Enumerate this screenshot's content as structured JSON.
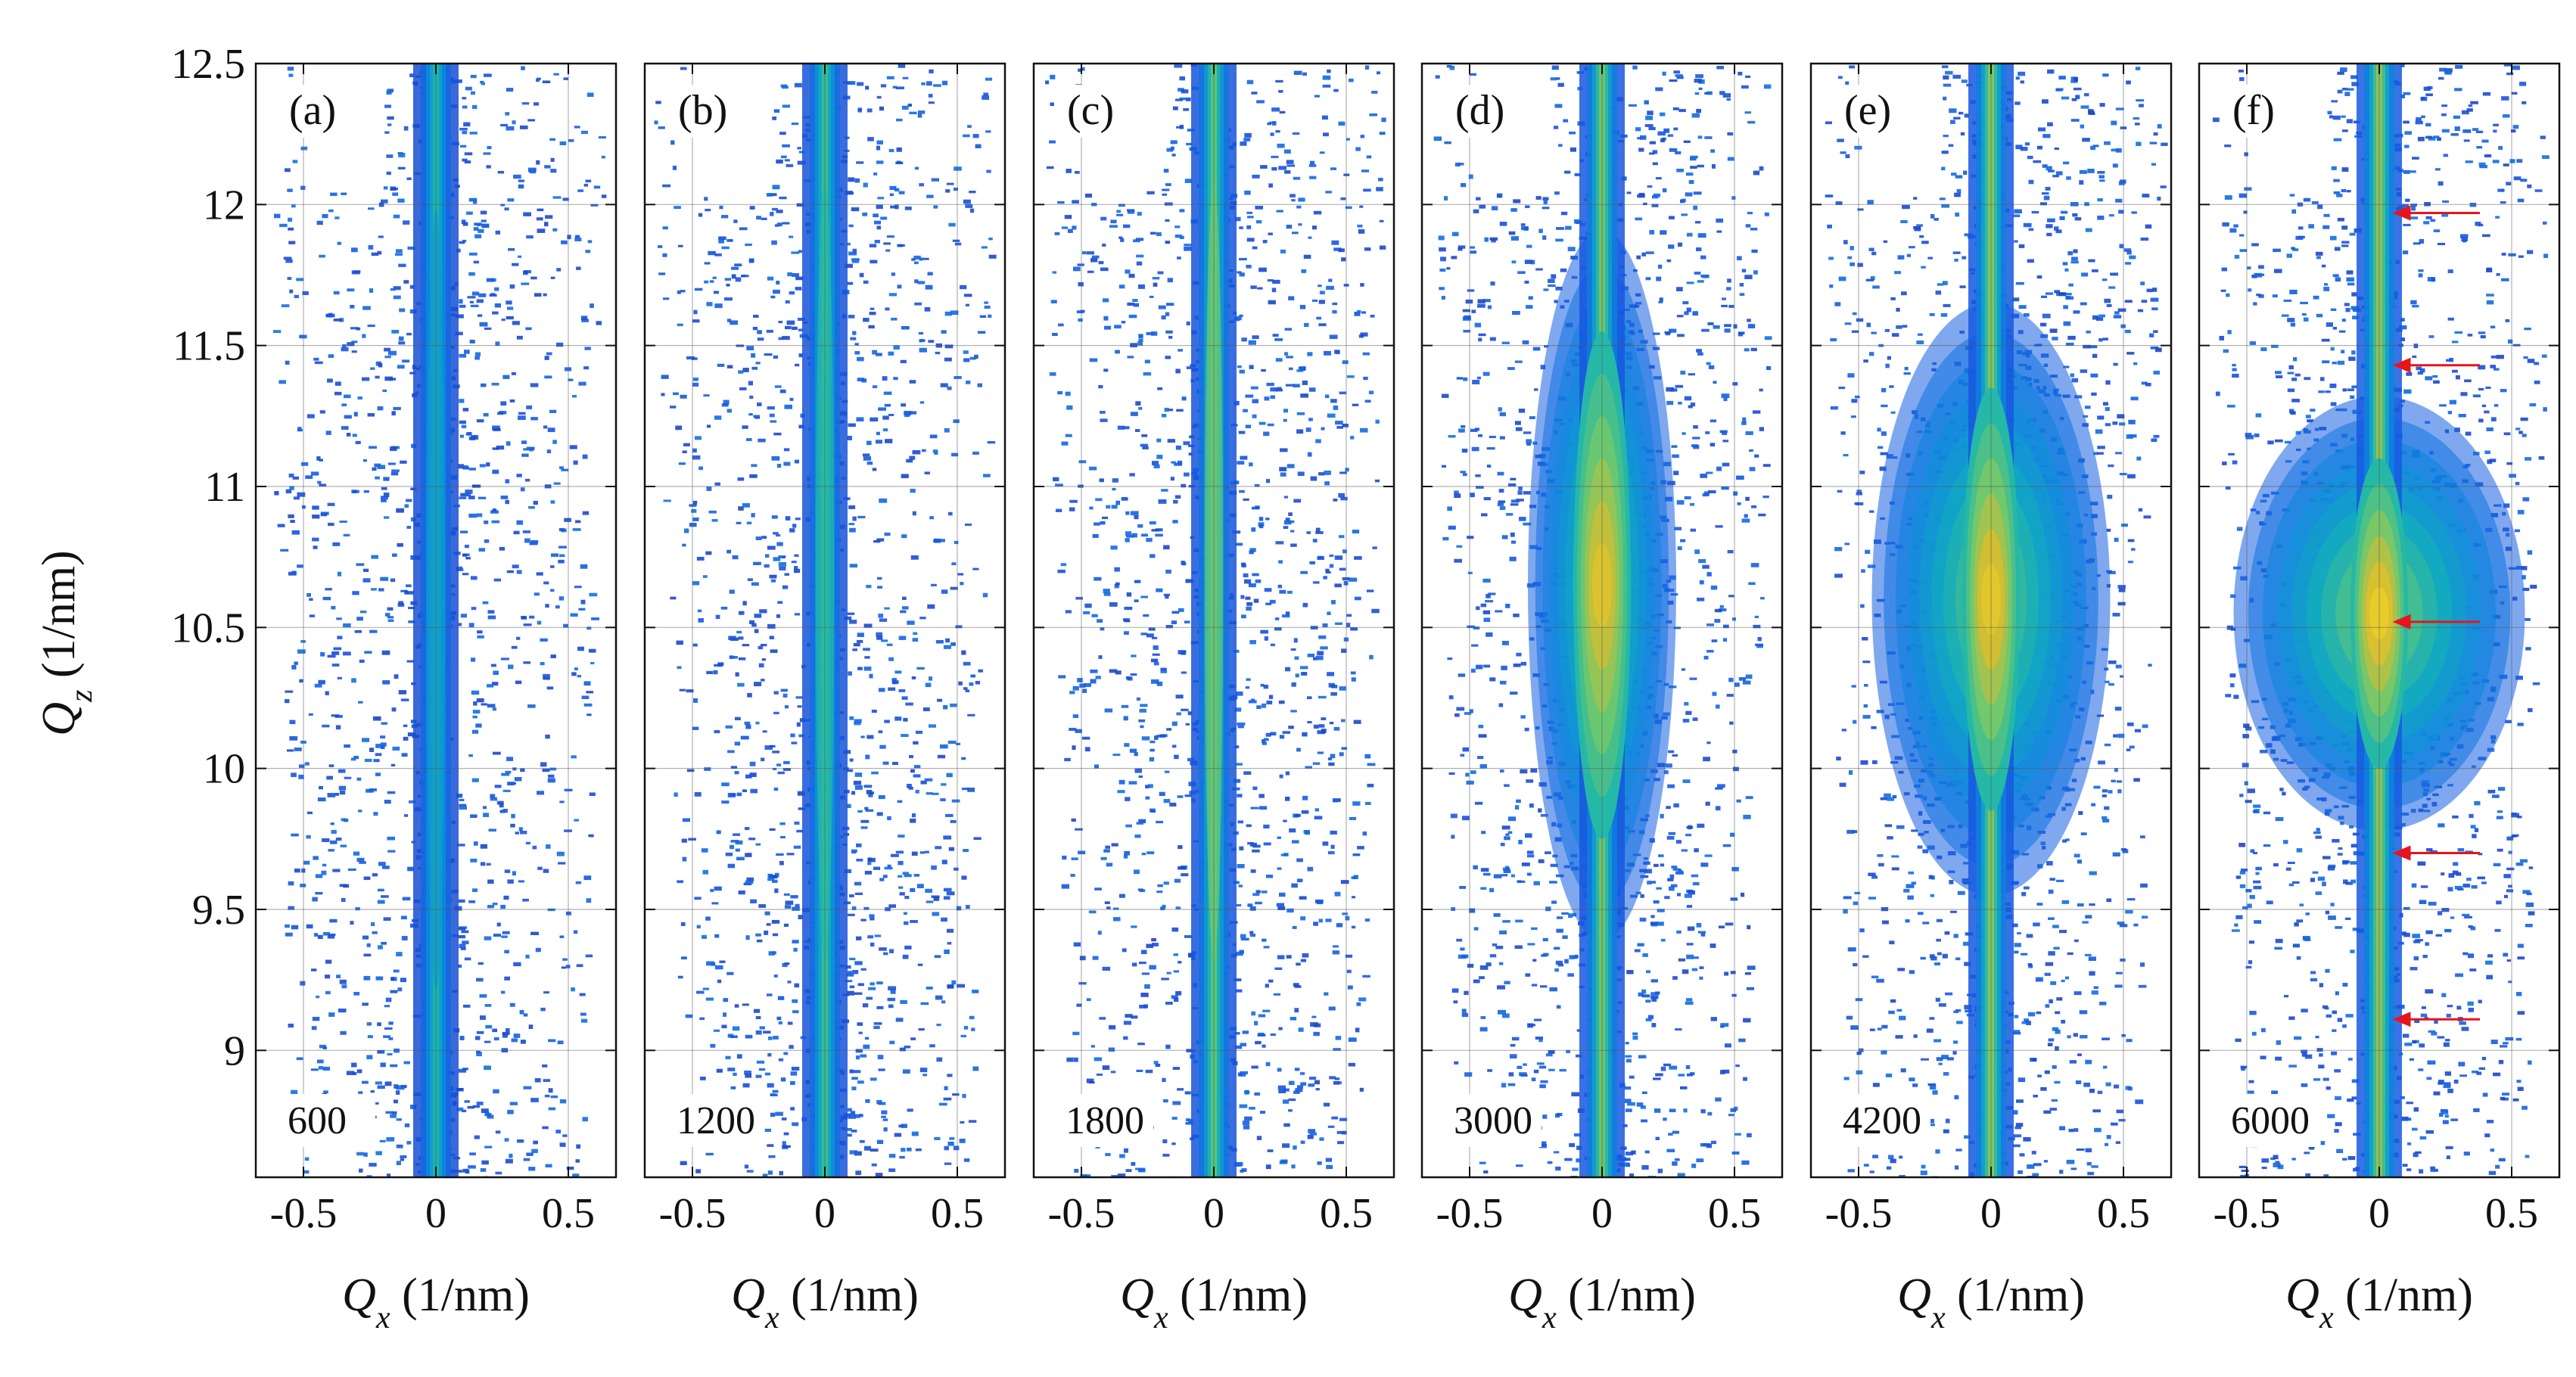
{
  "chart_data": {
    "type": "heatmap",
    "title": "",
    "x_axis": {
      "label_symbol": "Q",
      "label_subscript": "x",
      "label_unit": " (1/nm)",
      "range": [
        -0.68,
        0.68
      ],
      "ticks": [
        -0.5,
        0,
        0.5
      ],
      "tick_labels": [
        "-0.5",
        "0",
        "0.5"
      ]
    },
    "y_axis": {
      "label_symbol": "Q",
      "label_subscript": "z",
      "label_unit": " (1/nm)",
      "range": [
        8.55,
        12.5
      ],
      "ticks": [
        9,
        9.5,
        10,
        10.5,
        11,
        11.5,
        12,
        12.5
      ],
      "tick_labels": [
        "9",
        "9.5",
        "10",
        "10.5",
        "11",
        "11.5",
        "12",
        "12.5"
      ]
    },
    "grid": true,
    "colormap": "parula",
    "panels": [
      {
        "label": "(a)",
        "value_label": "600",
        "peak_strength": 0.3,
        "peak_center": 10.6,
        "peak_half_height": 0.0,
        "halo_width": 0.0,
        "arrows": []
      },
      {
        "label": "(b)",
        "value_label": "1200",
        "peak_strength": 0.5,
        "peak_center": 10.7,
        "peak_half_height": 0.0,
        "halo_width": 0.0,
        "arrows": []
      },
      {
        "label": "(c)",
        "value_label": "1800",
        "peak_strength": 0.68,
        "peak_center": 10.7,
        "peak_half_height": 0.0,
        "halo_width": 0.0,
        "arrows": []
      },
      {
        "label": "(d)",
        "value_label": "3000",
        "peak_strength": 0.82,
        "peak_center": 10.65,
        "peak_half_height": 0.9,
        "halo_width": 0.28,
        "arrows": []
      },
      {
        "label": "(e)",
        "value_label": "4200",
        "peak_strength": 0.9,
        "peak_center": 10.6,
        "peak_half_height": 0.75,
        "halo_width": 0.45,
        "arrows": []
      },
      {
        "label": "(f)",
        "value_label": "6000",
        "peak_strength": 0.98,
        "peak_center": 10.55,
        "peak_half_height": 0.55,
        "halo_width": 0.55,
        "arrows": [
          11.97,
          11.43,
          10.52,
          9.7,
          9.11
        ]
      }
    ]
  }
}
